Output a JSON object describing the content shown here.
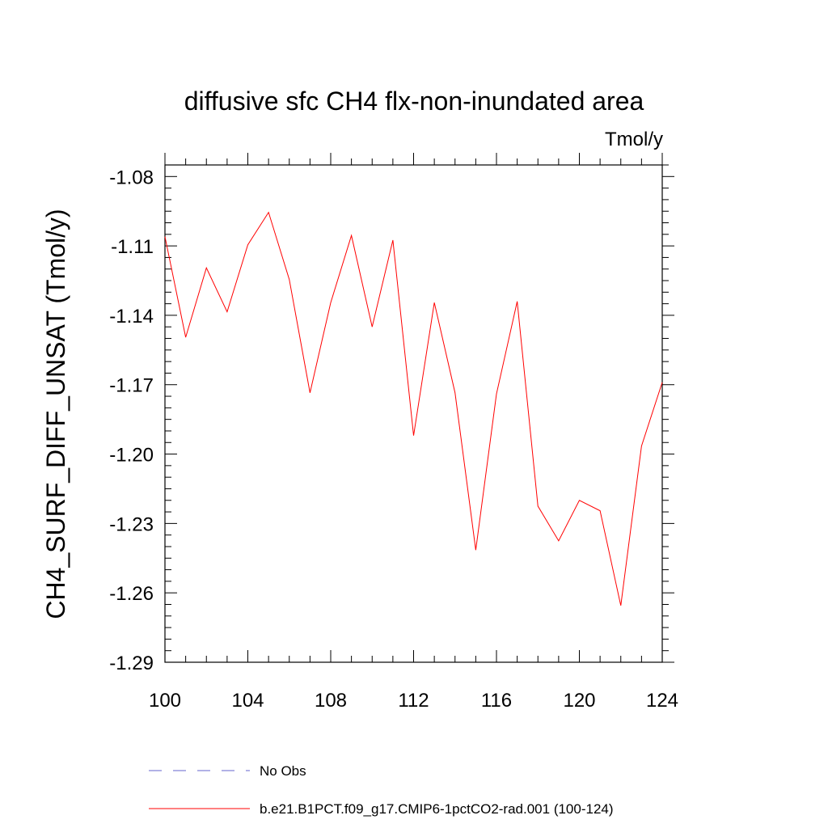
{
  "chart_data": {
    "type": "line",
    "title": "diffusive sfc CH4 flx-non-inundated area",
    "units": "Tmol/y",
    "xlabel": "",
    "ylabel": "CH4_SURF_DIFF_UNSAT  (Tmol/y)",
    "xlim": [
      100,
      124
    ],
    "ylim": [
      -1.29,
      -1.075
    ],
    "x_ticks": [
      100,
      104,
      108,
      112,
      116,
      120,
      124
    ],
    "x_tick_labels": [
      "100",
      "104",
      "108",
      "112",
      "116",
      "120",
      "124"
    ],
    "y_ticks": [
      -1.29,
      -1.26,
      -1.23,
      -1.2,
      -1.17,
      -1.14,
      -1.11,
      -1.08
    ],
    "y_tick_labels": [
      "-1.29",
      "-1.26",
      "-1.23",
      "-1.20",
      "-1.17",
      "-1.14",
      "-1.11",
      "-1.08"
    ],
    "grid": false,
    "legend_position": "bottom",
    "x": [
      100,
      101,
      102,
      103,
      104,
      105,
      106,
      107,
      108,
      109,
      110,
      111,
      112,
      113,
      114,
      115,
      116,
      117,
      118,
      119,
      120,
      121,
      122,
      123,
      124
    ],
    "series": [
      {
        "name": "b.e21.B1PCT.f09_g17.CMIP6-1pctCO2-rad.001 (100-124)",
        "color": "#ff0000",
        "dash": "solid",
        "values": [
          -1.106,
          -1.1495,
          -1.1195,
          -1.1385,
          -1.1095,
          -1.0955,
          -1.1245,
          -1.1735,
          -1.1345,
          -1.1055,
          -1.145,
          -1.1075,
          -1.192,
          -1.1345,
          -1.1735,
          -1.2415,
          -1.174,
          -1.134,
          -1.2225,
          -1.2375,
          -1.22,
          -1.2245,
          -1.2655,
          -1.1965,
          -1.169
        ]
      }
    ],
    "legend": [
      {
        "label": "No Obs",
        "color": "#6666cc",
        "dash": "dashed"
      },
      {
        "label": "b.e21.B1PCT.f09_g17.CMIP6-1pctCO2-rad.001 (100-124)",
        "color": "#ff0000",
        "dash": "solid"
      }
    ]
  }
}
